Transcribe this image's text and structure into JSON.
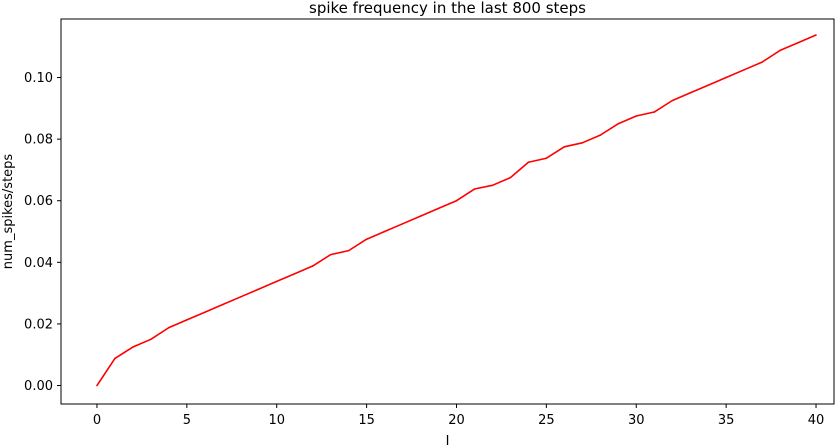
{
  "chart_data": {
    "type": "line",
    "title": "spike frequency in the last 800 steps",
    "xlabel": "I",
    "ylabel": "num_spikes/steps",
    "xlim": [
      -2,
      41
    ],
    "ylim": [
      -0.006,
      0.119
    ],
    "xticks": [
      0,
      5,
      10,
      15,
      20,
      25,
      30,
      35,
      40
    ],
    "xtick_labels": [
      "0",
      "5",
      "10",
      "15",
      "20",
      "25",
      "30",
      "35",
      "40"
    ],
    "yticks": [
      0.0,
      0.02,
      0.04,
      0.06,
      0.08,
      0.1
    ],
    "ytick_labels": [
      "0.00",
      "0.02",
      "0.04",
      "0.06",
      "0.08",
      "0.10"
    ],
    "grid": false,
    "series": [
      {
        "color": "#ff0000",
        "x": [
          0,
          1,
          2,
          3,
          4,
          5,
          6,
          7,
          8,
          9,
          10,
          11,
          12,
          13,
          14,
          15,
          16,
          17,
          18,
          19,
          20,
          21,
          22,
          23,
          24,
          25,
          26,
          27,
          28,
          29,
          30,
          31,
          32,
          33,
          34,
          35,
          36,
          37,
          38,
          39,
          40
        ],
        "y": [
          0.0,
          0.0088,
          0.0125,
          0.015,
          0.0188,
          0.0213,
          0.0238,
          0.0263,
          0.0288,
          0.0313,
          0.0338,
          0.0363,
          0.0388,
          0.0425,
          0.0438,
          0.0475,
          0.05,
          0.0525,
          0.055,
          0.0575,
          0.06,
          0.0638,
          0.065,
          0.0675,
          0.0725,
          0.0738,
          0.0775,
          0.0788,
          0.0813,
          0.085,
          0.0875,
          0.0888,
          0.0925,
          0.095,
          0.0975,
          0.1,
          0.1025,
          0.105,
          0.1088,
          0.1113,
          0.1138
        ]
      }
    ]
  }
}
